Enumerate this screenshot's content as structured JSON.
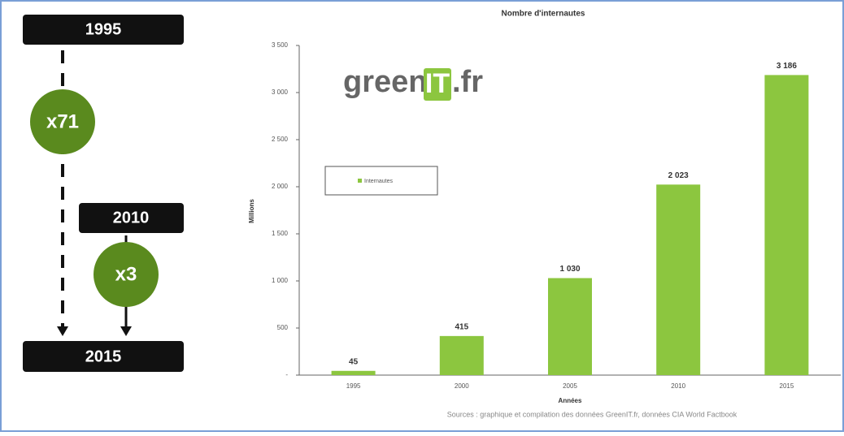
{
  "infographic": {
    "start": "1995",
    "middle": "2010",
    "end": "2015",
    "factor_long": "x71",
    "factor_short": "x3"
  },
  "logo": {
    "prefix": "green",
    "highlight": "IT",
    "suffix": ".fr"
  },
  "chart_data": {
    "type": "bar",
    "title": "Nombre d'internautes",
    "categories": [
      "1995",
      "2000",
      "2005",
      "2010",
      "2015"
    ],
    "series": [
      {
        "name": "Internautes",
        "color": "#8cc63f",
        "values": [
          45,
          415,
          1030,
          2023,
          3186
        ],
        "value_labels": [
          "45",
          "415",
          "1 030",
          "2 023",
          "3 186"
        ]
      }
    ],
    "ylim": [
      0,
      3500
    ],
    "yticks": [
      {
        "value": 0,
        "label": "-"
      },
      500,
      {
        "value": 1000,
        "label": "1 000"
      },
      {
        "value": 1500,
        "label": "1 500"
      },
      {
        "value": 2000,
        "label": "2 000"
      },
      {
        "value": 2500,
        "label": "2 500"
      },
      {
        "value": 3000,
        "label": "3 000"
      },
      {
        "value": 3500,
        "label": "3 500"
      }
    ],
    "y_label": "Millions",
    "x_label": "Années",
    "source": "Sources : graphique et compilation des données GreenIT.fr, données CIA World Factbook"
  }
}
